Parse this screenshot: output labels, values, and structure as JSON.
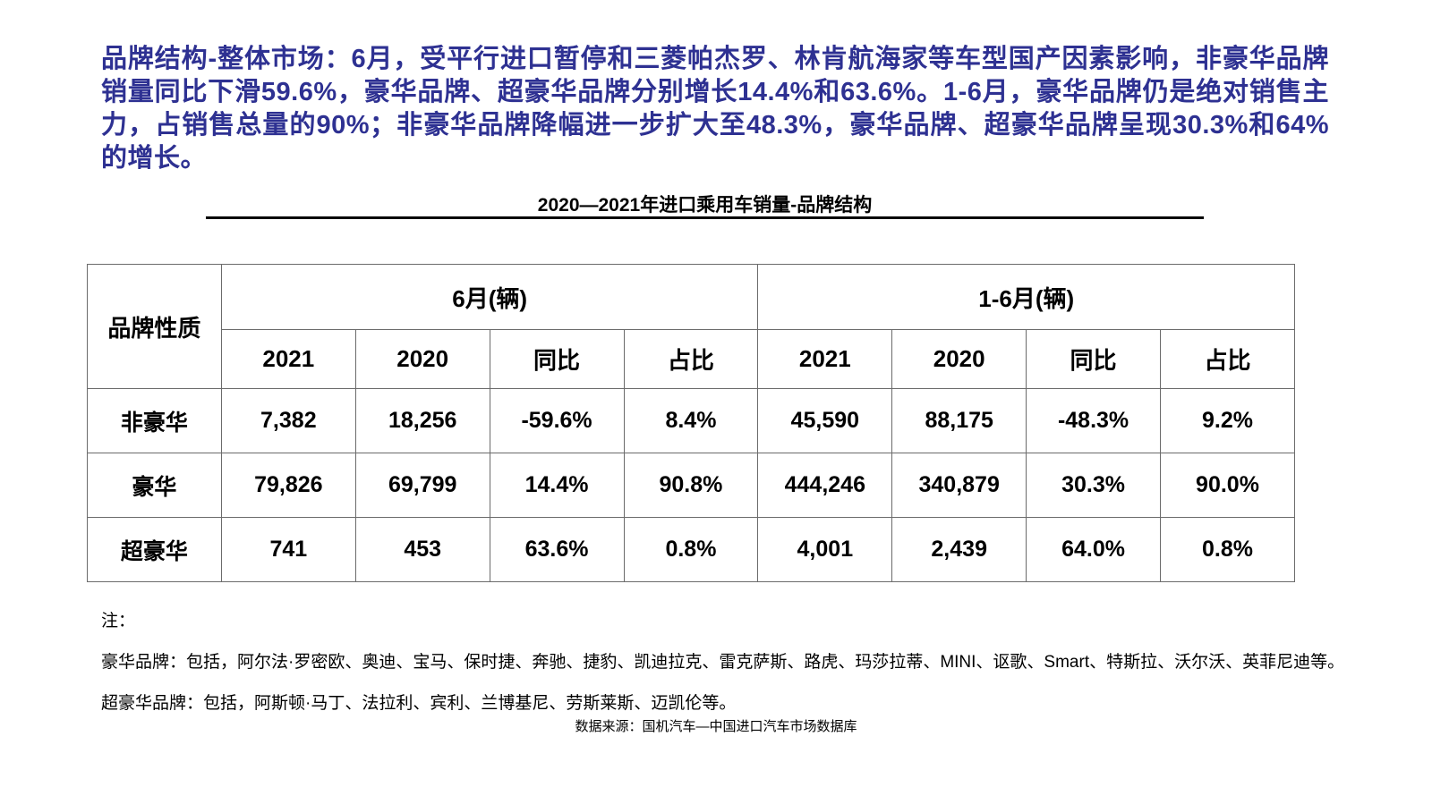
{
  "header": {
    "title": "品牌结构-整体市场：6月，受平行进口暂停和三菱帕杰罗、林肯航海家等车型国产因素影响，非豪华品牌销量同比下滑59.6%，豪华品牌、超豪华品牌分别增长14.4%和63.6%。1-6月，豪华品牌仍是绝对销售主力，占销售总量的90%；非豪华品牌降幅进一步扩大至48.3%，豪华品牌、超豪华品牌呈现30.3%和64%的增长。"
  },
  "table": {
    "title": "2020—2021年进口乘用车销量-品牌结构",
    "corner_header": "品牌性质",
    "groups": [
      {
        "label": "6月(辆)",
        "columns": [
          "2021",
          "2020",
          "同比",
          "占比"
        ]
      },
      {
        "label": "1-6月(辆)",
        "columns": [
          "2021",
          "2020",
          "同比",
          "占比"
        ]
      }
    ],
    "rows": [
      {
        "label": "非豪华",
        "values": [
          "7,382",
          "18,256",
          "-59.6%",
          "8.4%",
          "45,590",
          "88,175",
          "-48.3%",
          "9.2%"
        ]
      },
      {
        "label": "豪华",
        "values": [
          "79,826",
          "69,799",
          "14.4%",
          "90.8%",
          "444,246",
          "340,879",
          "30.3%",
          "90.0%"
        ]
      },
      {
        "label": "超豪华",
        "values": [
          "741",
          "453",
          "63.6%",
          "0.8%",
          "4,001",
          "2,439",
          "64.0%",
          "0.8%"
        ]
      }
    ]
  },
  "chart_data": {
    "type": "table",
    "title": "2020—2021年进口乘用车销量-品牌结构",
    "column_groups": [
      "6月(辆)",
      "1-6月(辆)"
    ],
    "columns": [
      "品牌性质",
      "2021",
      "2020",
      "同比",
      "占比",
      "2021",
      "2020",
      "同比",
      "占比"
    ],
    "rows": [
      [
        "非豪华",
        "7,382",
        "18,256",
        "-59.6%",
        "8.4%",
        "45,590",
        "88,175",
        "-48.3%",
        "9.2%"
      ],
      [
        "豪华",
        "79,826",
        "69,799",
        "14.4%",
        "90.8%",
        "444,246",
        "340,879",
        "30.3%",
        "90.0%"
      ],
      [
        "超豪华",
        "741",
        "453",
        "63.6%",
        "0.8%",
        "4,001",
        "2,439",
        "64.0%",
        "0.8%"
      ]
    ]
  },
  "notes": {
    "label": "注：",
    "lines": [
      "豪华品牌：包括，阿尔法·罗密欧、奥迪、宝马、保时捷、奔驰、捷豹、凯迪拉克、雷克萨斯、路虎、玛莎拉蒂、MINI、讴歌、Smart、特斯拉、沃尔沃、英菲尼迪等。",
      "超豪华品牌：包括，阿斯顿·马丁、法拉利、宾利、兰博基尼、劳斯莱斯、迈凯伦等。"
    ]
  },
  "footer": {
    "source": "数据来源：国机汽车—中国进口汽车市场数据库"
  },
  "colors": {
    "headline_blue": "#2E3192",
    "table_border": "#6b6b6b",
    "text_black": "#000000",
    "background": "#ffffff"
  }
}
